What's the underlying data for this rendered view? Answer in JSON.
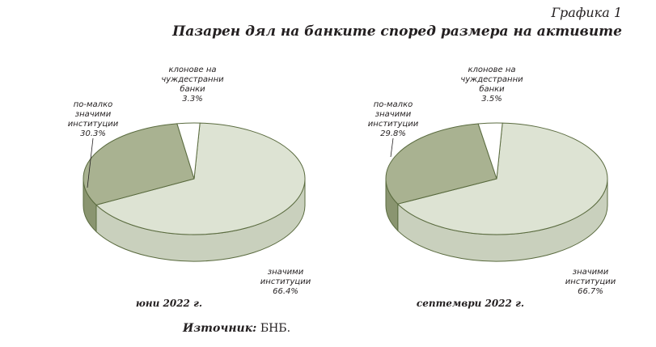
{
  "figure": {
    "number": "Графика 1",
    "title": "Пазарен дял на банките според размера на активите"
  },
  "source": {
    "label": "Източник:",
    "text": "БНБ."
  },
  "colors": {
    "significant": "#dde3d3",
    "less_significant": "#a9b291",
    "foreign_branches": "#ffffff",
    "stroke": "#5a6b3f"
  },
  "chart_data": [
    {
      "type": "pie",
      "title": "юни 2022 г.",
      "unit": "%",
      "slices": [
        {
          "label_lines": [
            "значими",
            "институции"
          ],
          "value": 66.4,
          "value_text": "66.4%"
        },
        {
          "label_lines": [
            "по-малко",
            "значими",
            "институции"
          ],
          "value": 30.3,
          "value_text": "30.3%"
        },
        {
          "label_lines": [
            "клонове на",
            "чуждестранни",
            "банки"
          ],
          "value": 3.3,
          "value_text": "3.3%"
        }
      ]
    },
    {
      "type": "pie",
      "title": "септември 2022 г.",
      "unit": "%",
      "slices": [
        {
          "label_lines": [
            "значими",
            "институции"
          ],
          "value": 66.7,
          "value_text": "66.7%"
        },
        {
          "label_lines": [
            "по-малко",
            "значими",
            "институции"
          ],
          "value": 29.8,
          "value_text": "29.8%"
        },
        {
          "label_lines": [
            "клонове на",
            "чуждестранни",
            "банки"
          ],
          "value": 3.5,
          "value_text": "3.5%"
        }
      ]
    }
  ]
}
